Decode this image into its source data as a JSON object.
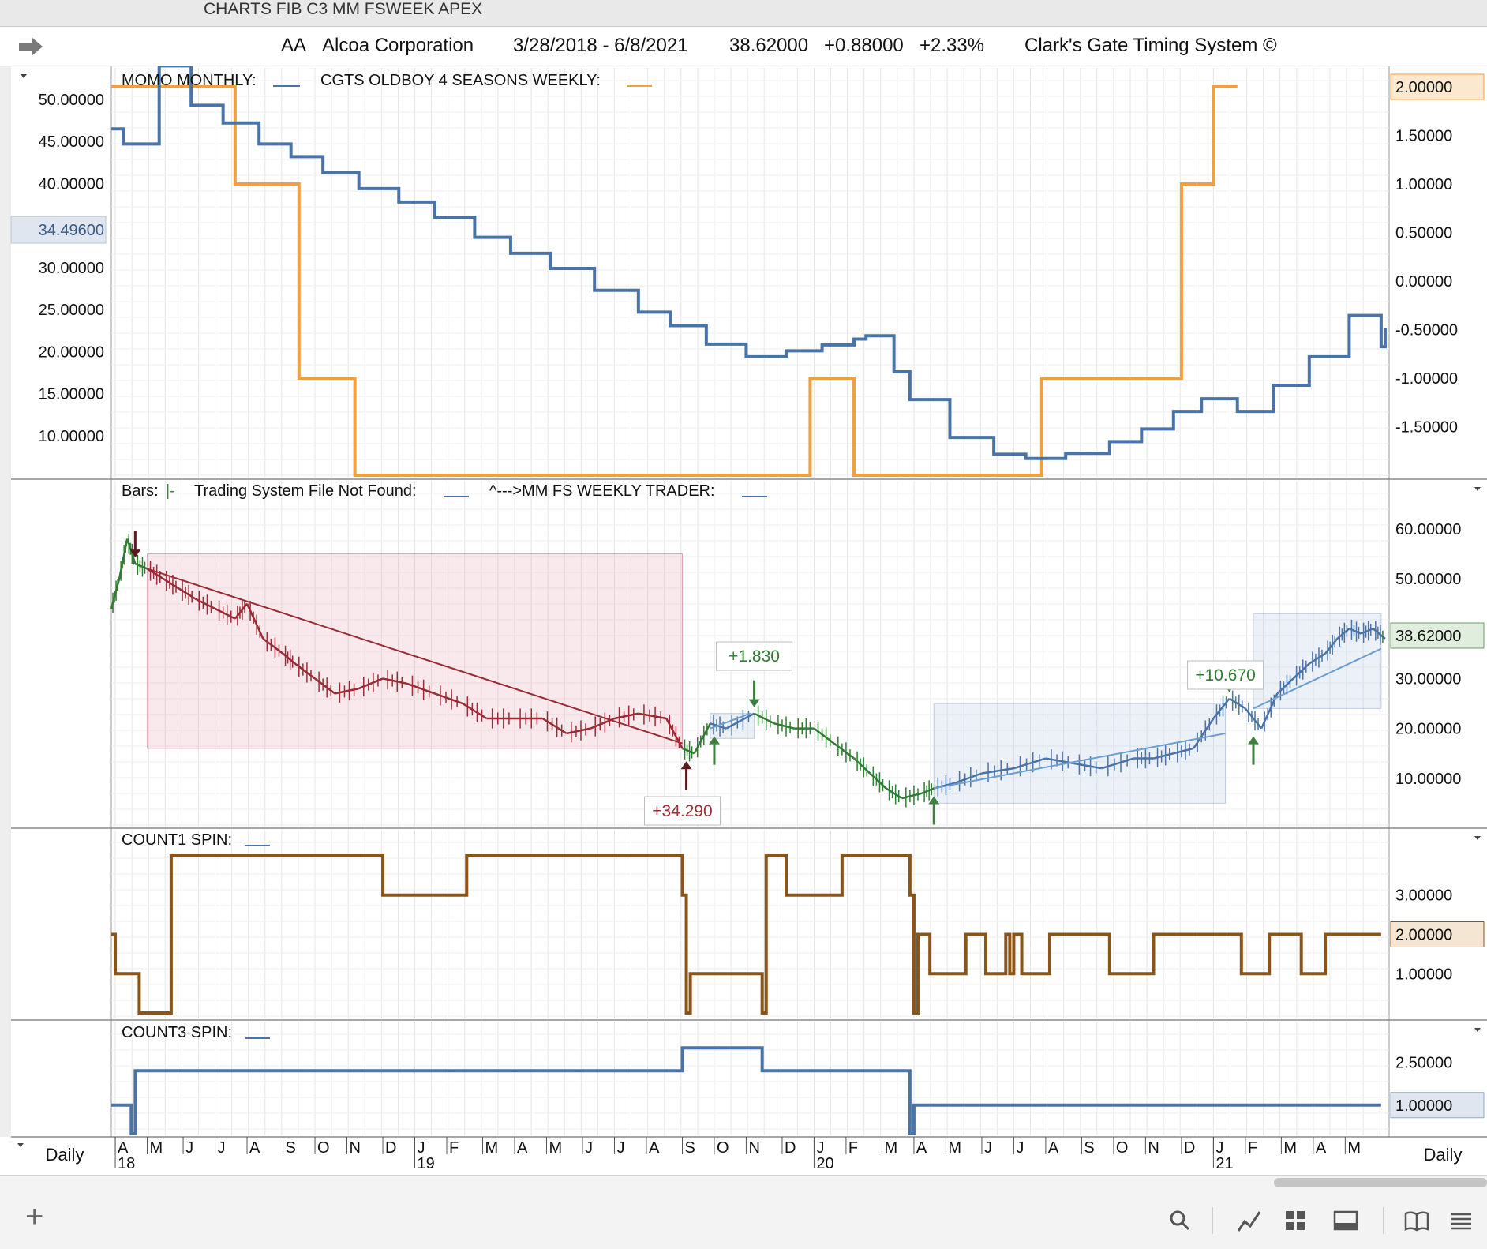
{
  "window": {
    "title": "CHARTS FIB C3 MM FSWEEK APEX"
  },
  "header": {
    "symbol": "AA",
    "company": "Alcoa Corporation",
    "date_range": "3/28/2018 - 6/8/2021",
    "last": "38.62000",
    "change": "+0.88000",
    "change_pct": "+2.33%",
    "system": "Clark's Gate Timing System ©"
  },
  "colors": {
    "blue": "#4a74a8",
    "orange": "#f0a040",
    "brown": "#8b5418",
    "red": "#9a2b34",
    "green": "#2e7d32",
    "light_blue": "#6a9fd0",
    "grid": "#e6e6e6"
  },
  "footer": {
    "left_period": "Daily",
    "right_period": "Daily"
  },
  "icons": [
    "search-icon",
    "line-chart-icon",
    "grid-icon",
    "panel-icon",
    "book-icon",
    "menu-icon"
  ],
  "chart_data": [
    {
      "type": "line",
      "title": "MOMO MONTHLY:___   CGTS OLDBOY 4 SEASONS WEEKLY:___",
      "legend": [
        "MOMO MONTHLY:",
        "CGTS OLDBOY 4 SEASONS WEEKLY:"
      ],
      "left_axis_ticks": [
        "50.00000",
        "45.00000",
        "40.00000",
        "30.00000",
        "25.00000",
        "20.00000",
        "15.00000",
        "10.00000"
      ],
      "left_axis_marker": "34.49600",
      "right_axis_ticks": [
        "1.50000",
        "1.00000",
        "0.50000",
        "0.00000",
        "-0.50000",
        "-1.00000",
        "-1.50000"
      ],
      "right_axis_marker": "2.00000",
      "ylim_left": [
        5.3,
        51.5
      ],
      "ylim_right": [
        -2.0,
        2.0
      ],
      "series": [
        {
          "name": "MOMO MONTHLY",
          "axis": "left",
          "step": true,
          "x": [
            2018.24,
            2018.27,
            2018.36,
            2018.44,
            2018.52,
            2018.61,
            2018.69,
            2018.77,
            2018.86,
            2018.96,
            2019.05,
            2019.15,
            2019.24,
            2019.34,
            2019.45,
            2019.56,
            2019.64,
            2019.73,
            2019.83,
            2019.93,
            2020.02,
            2020.1,
            2020.13,
            2020.2,
            2020.24,
            2020.34,
            2020.45,
            2020.53,
            2020.63,
            2020.74,
            2020.82,
            2020.9,
            2020.97,
            2021.06,
            2021.15,
            2021.24,
            2021.34,
            2021.42,
            2021.43
          ],
          "y": [
            46.5,
            44.7,
            54.0,
            49.3,
            47.2,
            44.7,
            43.2,
            41.3,
            39.4,
            37.8,
            36.0,
            33.6,
            31.7,
            29.9,
            27.3,
            24.7,
            23.1,
            20.9,
            19.4,
            20.1,
            20.8,
            21.5,
            21.9,
            17.6,
            14.3,
            9.8,
            7.8,
            7.3,
            7.9,
            9.3,
            10.8,
            12.9,
            14.4,
            12.9,
            16.0,
            19.4,
            24.3,
            20.6,
            22.8
          ]
        },
        {
          "name": "CGTS OLDBOY 4 SEASONS WEEKLY",
          "axis": "right",
          "step": true,
          "x": [
            2018.24,
            2018.55,
            2018.71,
            2018.85,
            2019.99,
            2020.1,
            2020.57,
            2020.92,
            2021.0,
            2021.06
          ],
          "y": [
            2.0,
            1.0,
            -1.0,
            -2.0,
            -1.0,
            -2.0,
            -1.0,
            1.0,
            2.0,
            2.0
          ]
        }
      ]
    },
    {
      "type": "line",
      "title": "Bars:|-   Trading System File Not Found:___   ^--->MM FS WEEKLY TRADER:___",
      "legend": [
        "Bars:",
        "Trading System File Not Found:",
        "^--->MM FS WEEKLY TRADER:"
      ],
      "right_axis_ticks": [
        "60.00000",
        "50.00000",
        "30.00000",
        "20.00000",
        "10.00000"
      ],
      "right_axis_marker": "38.62000",
      "ylim": [
        0,
        66
      ],
      "price_series": {
        "x": [
          2018.24,
          2018.26,
          2018.28,
          2018.3,
          2018.33,
          2018.37,
          2018.41,
          2018.45,
          2018.5,
          2018.55,
          2018.58,
          2018.62,
          2018.67,
          2018.7,
          2018.75,
          2018.8,
          2018.86,
          2018.92,
          2018.98,
          2019.05,
          2019.12,
          2019.18,
          2019.25,
          2019.32,
          2019.38,
          2019.44,
          2019.5,
          2019.56,
          2019.63,
          2019.67,
          2019.7,
          2019.74,
          2019.78,
          2019.85,
          2019.9,
          2019.95,
          2020.0,
          2020.05,
          2020.1,
          2020.14,
          2020.18,
          2020.22,
          2020.27,
          2020.3,
          2020.35,
          2020.42,
          2020.5,
          2020.58,
          2020.65,
          2020.72,
          2020.8,
          2020.85,
          2020.9,
          2020.95,
          2021.0,
          2021.04,
          2021.08,
          2021.12,
          2021.16,
          2021.2,
          2021.24,
          2021.28,
          2021.31,
          2021.34,
          2021.37,
          2021.4,
          2021.43
        ],
        "y": [
          44,
          50,
          58,
          53,
          52,
          50,
          48,
          46,
          44,
          42,
          45,
          38,
          35,
          33,
          30,
          27,
          28,
          30,
          29,
          27,
          25,
          22,
          22,
          22,
          19,
          20,
          22,
          23,
          22,
          16,
          15,
          21,
          20,
          23,
          21,
          20,
          20,
          17,
          14,
          11,
          8,
          6,
          7,
          8,
          9,
          11,
          12,
          14,
          13,
          12,
          14,
          14,
          15,
          16,
          22,
          26,
          24,
          20,
          27,
          30,
          33,
          35,
          38,
          40,
          39,
          40,
          38
        ]
      },
      "trades": [
        {
          "label": "+34.290",
          "color": "red",
          "x_start": 2018.33,
          "x_end": 2019.67,
          "y_top": 55,
          "y_bottom": 16,
          "trend_from": [
            2018.33,
            52
          ],
          "trend_to": [
            2019.67,
            17
          ]
        },
        {
          "label": "+1.830",
          "color": "blue",
          "x_start": 2019.74,
          "x_end": 2019.85,
          "y_top": 23,
          "y_bottom": 18,
          "trend_from": [
            2019.74,
            20
          ],
          "trend_to": [
            2019.84,
            23
          ]
        },
        {
          "label": "+10.670",
          "color": "blue",
          "x_start": 2020.3,
          "x_end": 2021.03,
          "y_top": 25,
          "y_bottom": 5,
          "trend_from": [
            2020.3,
            8
          ],
          "trend_to": [
            2021.03,
            19
          ]
        },
        {
          "label": "",
          "color": "blue",
          "x_start": 2021.1,
          "x_end": 2021.42,
          "y_top": 43,
          "y_bottom": 24,
          "trend_from": [
            2021.1,
            24
          ],
          "trend_to": [
            2021.42,
            36
          ]
        }
      ],
      "signals": [
        {
          "x": 2018.3,
          "dir": "down",
          "color": "red"
        },
        {
          "x": 2019.68,
          "dir": "up",
          "color": "red"
        },
        {
          "x": 2019.75,
          "dir": "up",
          "color": "green"
        },
        {
          "x": 2019.85,
          "dir": "down",
          "color": "green"
        },
        {
          "x": 2020.3,
          "dir": "up",
          "color": "green"
        },
        {
          "x": 2021.04,
          "dir": "down",
          "color": "green"
        },
        {
          "x": 2021.1,
          "dir": "up",
          "color": "green"
        }
      ]
    },
    {
      "type": "line",
      "title": "COUNT1 SPIN:___",
      "legend": [
        "COUNT1 SPIN:"
      ],
      "right_axis_ticks": [
        "3.00000",
        "1.00000"
      ],
      "right_axis_marker": "2.00000",
      "ylim": [
        -0.1,
        4.1
      ],
      "series": [
        {
          "name": "COUNT1 SPIN",
          "step": true,
          "x": [
            2018.24,
            2018.25,
            2018.3,
            2018.31,
            2018.39,
            2018.92,
            2019.13,
            2019.67,
            2019.68,
            2019.69,
            2019.87,
            2019.88,
            2019.93,
            2020.07,
            2020.24,
            2020.25,
            2020.26,
            2020.29,
            2020.38,
            2020.43,
            2020.48,
            2020.49,
            2020.5,
            2020.52,
            2020.59,
            2020.74,
            2020.85,
            2021.07,
            2021.14,
            2021.22,
            2021.28,
            2021.42
          ],
          "y": [
            2.0,
            1.0,
            1.0,
            0.0,
            4.0,
            3.0,
            4.0,
            3.0,
            0.0,
            1.0,
            0.0,
            4.0,
            3.0,
            4.0,
            3.0,
            0.0,
            2.0,
            1.0,
            2.0,
            1.0,
            2.0,
            1.0,
            2.0,
            1.0,
            2.0,
            1.0,
            2.0,
            1.0,
            2.0,
            1.0,
            2.0,
            2.0
          ]
        }
      ]
    },
    {
      "type": "line",
      "title": "COUNT3 SPIN:___",
      "legend": [
        "COUNT3 SPIN:"
      ],
      "right_axis_ticks": [
        "2.50000"
      ],
      "right_axis_marker": "1.00000",
      "ylim": [
        0.0,
        3.2
      ],
      "series": [
        {
          "name": "COUNT3 SPIN",
          "step": true,
          "x": [
            2018.24,
            2018.29,
            2018.3,
            2019.67,
            2019.87,
            2020.24,
            2020.25,
            2021.42
          ],
          "y": [
            1.0,
            0.0,
            2.2,
            3.0,
            2.2,
            0.0,
            1.0,
            1.0
          ]
        }
      ]
    }
  ],
  "x_axis": {
    "month_labels": [
      "A",
      "M",
      "J",
      "J",
      "A",
      "S",
      "O",
      "N",
      "D",
      "J",
      "F",
      "M",
      "A",
      "M",
      "J",
      "J",
      "A",
      "S",
      "O",
      "N",
      "D",
      "J",
      "F",
      "M",
      "A",
      "M",
      "J",
      "J",
      "A",
      "S",
      "O",
      "N",
      "D",
      "J",
      "F",
      "M",
      "A",
      "M"
    ],
    "month_x": [
      2018.25,
      2018.33,
      2018.42,
      2018.5,
      2018.58,
      2018.67,
      2018.75,
      2018.83,
      2018.92,
      2019.0,
      2019.08,
      2019.17,
      2019.25,
      2019.33,
      2019.42,
      2019.5,
      2019.58,
      2019.67,
      2019.75,
      2019.83,
      2019.92,
      2020.0,
      2020.08,
      2020.17,
      2020.25,
      2020.33,
      2020.42,
      2020.5,
      2020.58,
      2020.67,
      2020.75,
      2020.83,
      2020.92,
      2021.0,
      2021.08,
      2021.17,
      2021.25,
      2021.33
    ],
    "year_labels": [
      "18",
      "19",
      "20",
      "21"
    ],
    "year_x": [
      2018.25,
      2019.0,
      2020.0,
      2021.0
    ]
  }
}
